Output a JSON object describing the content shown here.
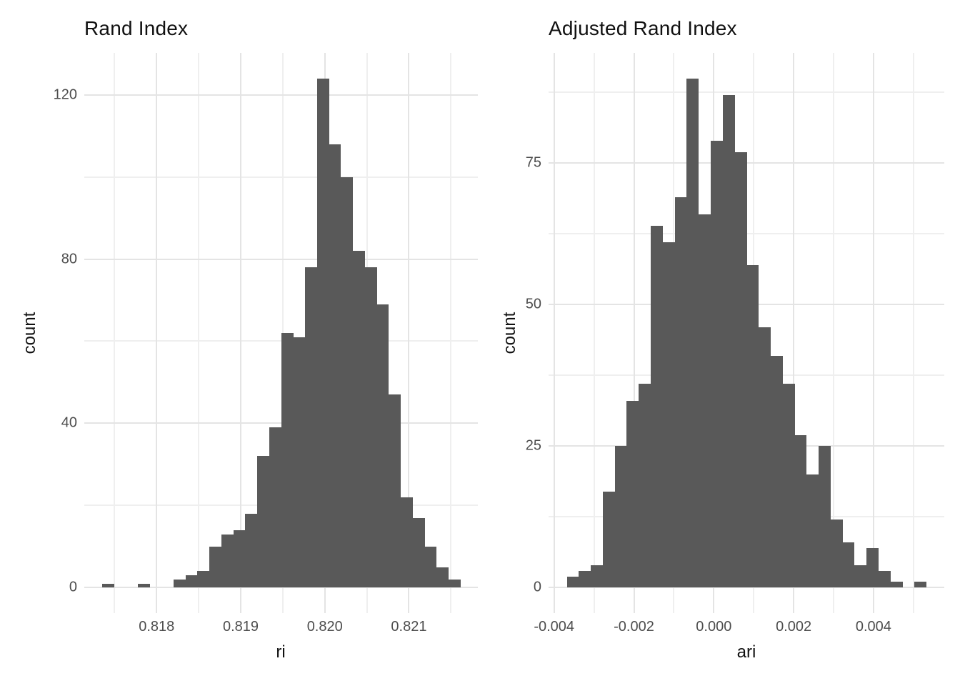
{
  "figure": {
    "background": "#ffffff",
    "colors": {
      "bar_fill": "#595959",
      "grid_major": "#e4e4e4",
      "grid_minor": "#efefef",
      "tick_label": "#4d4d4d",
      "text": "#111111"
    }
  },
  "chart_data": [
    {
      "type": "bar",
      "subtype": "histogram",
      "title": "Rand Index",
      "xlabel": "ri",
      "ylabel": "count",
      "grid": true,
      "legend": "none",
      "bins": {
        "first_edge": 0.81735,
        "width": 0.000142,
        "counts": [
          1,
          0,
          0,
          1,
          0,
          0,
          2,
          3,
          4,
          10,
          13,
          14,
          18,
          32,
          39,
          62,
          61,
          78,
          124,
          108,
          100,
          82,
          78,
          69,
          47,
          22,
          17,
          10,
          5,
          2
        ]
      },
      "x_domain": [
        0.81714,
        0.82182
      ],
      "y_domain": [
        -6.2,
        130.2
      ],
      "x_ticks": [
        {
          "value": 0.818,
          "label": "0.818"
        },
        {
          "value": 0.819,
          "label": "0.819"
        },
        {
          "value": 0.82,
          "label": "0.820"
        },
        {
          "value": 0.821,
          "label": "0.821"
        }
      ],
      "x_minor": [
        0.8175,
        0.8185,
        0.8195,
        0.8205,
        0.8215
      ],
      "y_ticks": [
        {
          "value": 0,
          "label": "0"
        },
        {
          "value": 40,
          "label": "40"
        },
        {
          "value": 80,
          "label": "80"
        },
        {
          "value": 120,
          "label": "120"
        }
      ],
      "y_minor": [
        20,
        60,
        100
      ]
    },
    {
      "type": "bar",
      "subtype": "histogram",
      "title": "Adjusted Rand Index",
      "xlabel": "ari",
      "ylabel": "count",
      "grid": true,
      "legend": "none",
      "bins": {
        "first_edge": -0.00368,
        "width": 0.0003,
        "counts": [
          2,
          3,
          4,
          17,
          25,
          33,
          36,
          64,
          61,
          69,
          90,
          66,
          79,
          87,
          77,
          57,
          46,
          41,
          36,
          27,
          20,
          25,
          12,
          8,
          4,
          7,
          3,
          1,
          0,
          1
        ]
      },
      "x_domain": [
        -0.004138,
        0.005773
      ],
      "y_domain": [
        -4.5,
        94.5
      ],
      "x_ticks": [
        {
          "value": -0.004,
          "label": "-0.004"
        },
        {
          "value": -0.002,
          "label": "-0.002"
        },
        {
          "value": 0.0,
          "label": "0.000"
        },
        {
          "value": 0.002,
          "label": "0.002"
        },
        {
          "value": 0.004,
          "label": "0.004"
        }
      ],
      "x_minor": [
        -0.003,
        -0.001,
        0.001,
        0.003,
        0.005
      ],
      "y_ticks": [
        {
          "value": 0,
          "label": "0"
        },
        {
          "value": 25,
          "label": "25"
        },
        {
          "value": 50,
          "label": "50"
        },
        {
          "value": 75,
          "label": "75"
        }
      ],
      "y_minor": [
        12.5,
        37.5,
        62.5,
        87.5
      ]
    }
  ]
}
